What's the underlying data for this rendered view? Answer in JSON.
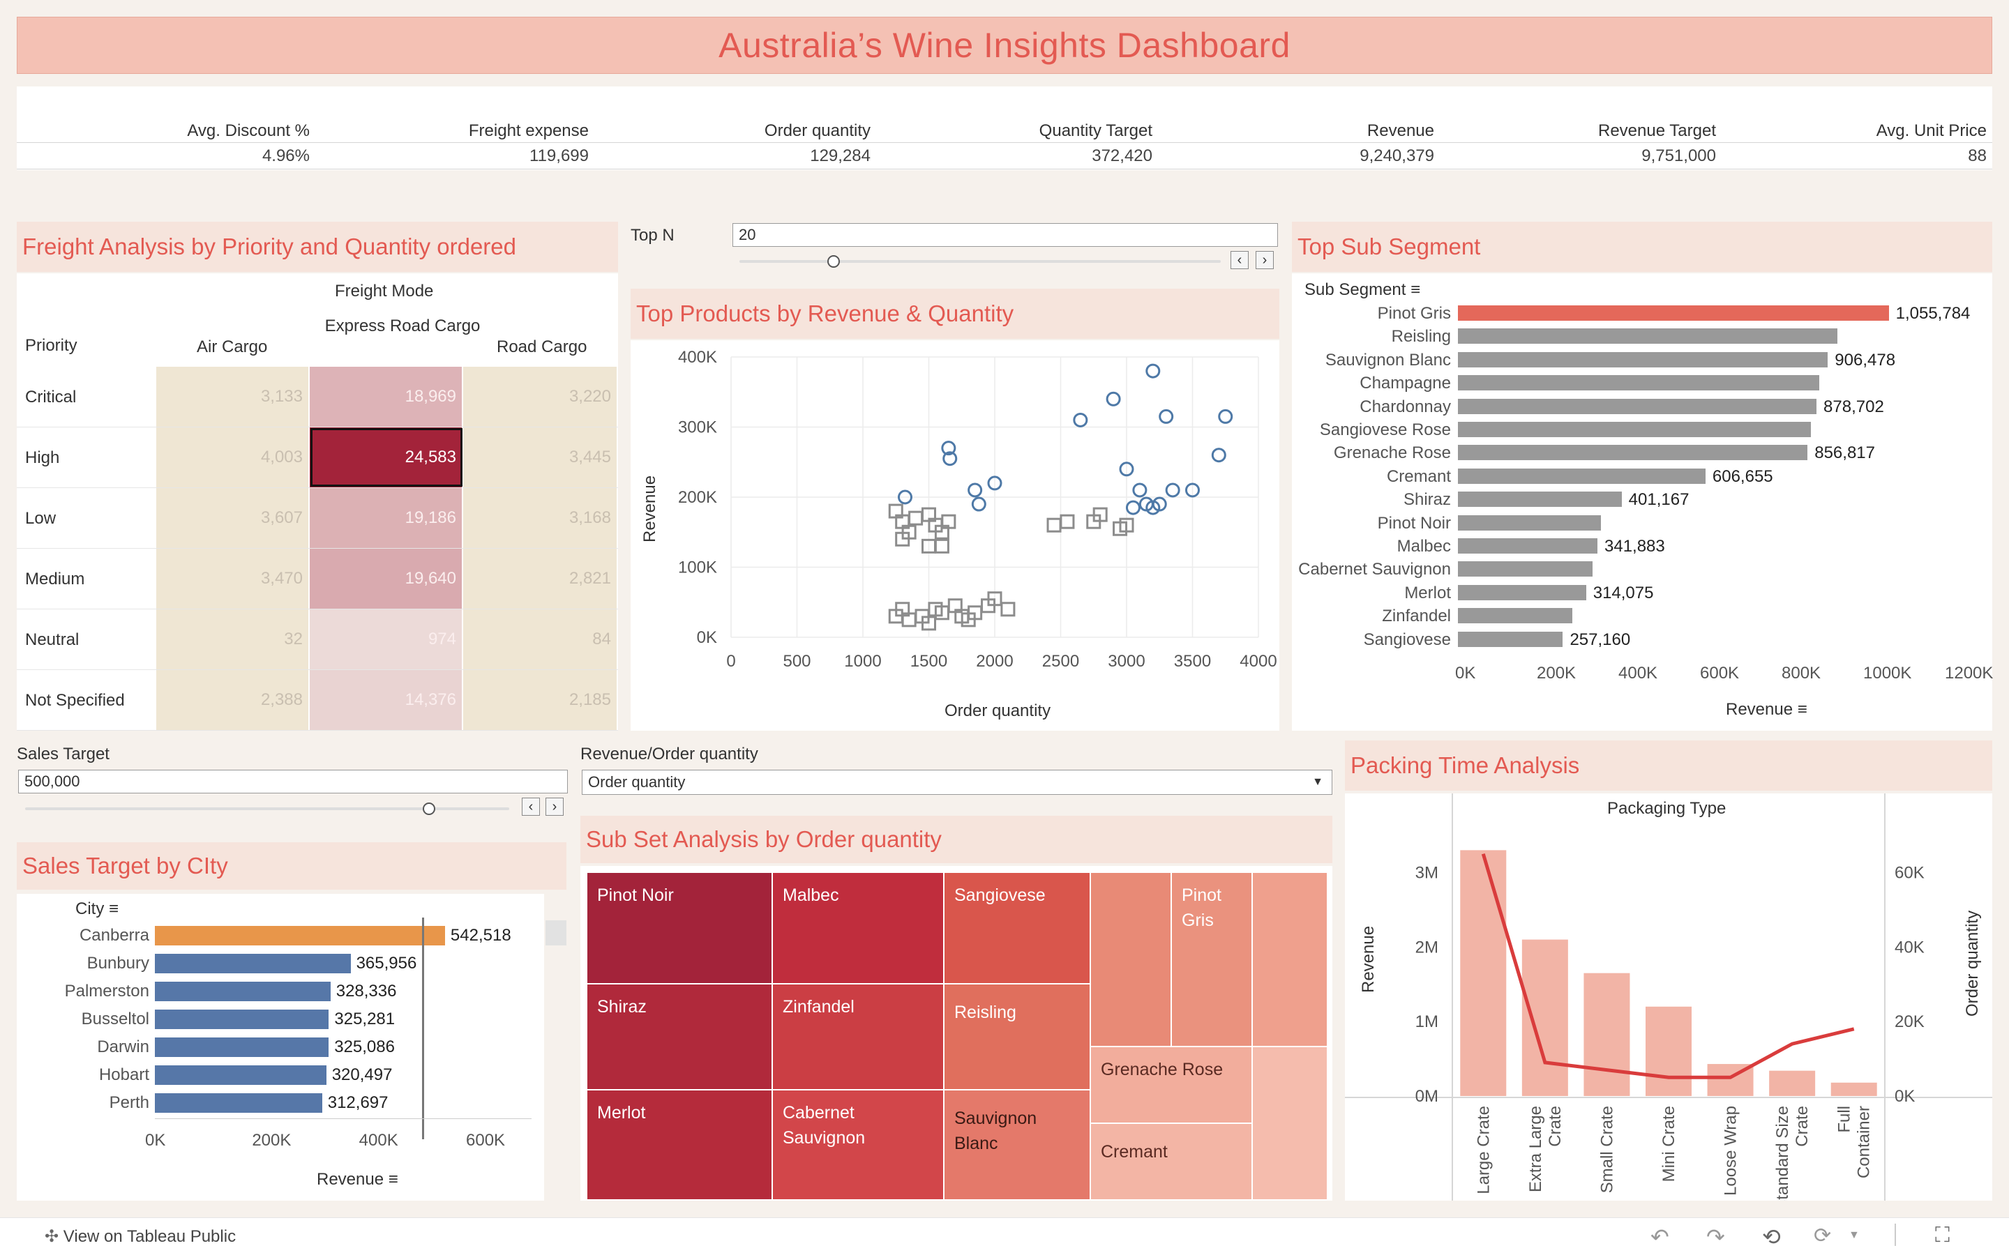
{
  "title": "Australia’s Wine Insights Dashboard",
  "kpis": [
    {
      "label": "Avg. Discount %",
      "value": "4.96%"
    },
    {
      "label": "Freight expense",
      "value": "119,699"
    },
    {
      "label": "Order quantity",
      "value": "129,284"
    },
    {
      "label": "Quantity Target",
      "value": "372,420"
    },
    {
      "label": "Revenue",
      "value": "9,240,379"
    },
    {
      "label": "Revenue Target",
      "value": "9,751,000"
    },
    {
      "label": "Avg. Unit Price",
      "value": "88"
    }
  ],
  "freight": {
    "title": "Freight Analysis by Priority and  Quantity ordered",
    "mode_header": "Freight Mode",
    "row_header": "Priority",
    "columns": [
      "Air Cargo",
      "Express Road Cargo",
      "Road Cargo"
    ],
    "rows": [
      {
        "priority": "Critical",
        "values": [
          "3,133",
          "18,969",
          "3,220"
        ]
      },
      {
        "priority": "High",
        "values": [
          "4,003",
          "24,583",
          "3,445"
        ]
      },
      {
        "priority": "Low",
        "values": [
          "3,607",
          "19,186",
          "3,168"
        ]
      },
      {
        "priority": "Medium",
        "values": [
          "3,470",
          "19,640",
          "2,821"
        ]
      },
      {
        "priority": "Neutral",
        "values": [
          "32",
          "974",
          "84"
        ]
      },
      {
        "priority": "Not Specified",
        "values": [
          "2,388",
          "14,376",
          "2,185"
        ]
      }
    ]
  },
  "topn": {
    "label": "Top N",
    "value": "20",
    "slider_fraction": 0.2
  },
  "scatter": {
    "title": "Top Products by Revenue & Quantity",
    "xlabel": "Order quantity",
    "ylabel": "Revenue",
    "xticks": [
      "0",
      "500",
      "1000",
      "1500",
      "2000",
      "2500",
      "3000",
      "3500",
      "4000"
    ],
    "yticks": [
      "0K",
      "100K",
      "200K",
      "300K",
      "400K"
    ]
  },
  "subsegment": {
    "title": "Top Sub Segment",
    "header": "Sub Segment",
    "axis_label": "Revenue",
    "xticks": [
      "0K",
      "200K",
      "400K",
      "600K",
      "800K",
      "1000K",
      "1200K"
    ]
  },
  "sales_target": {
    "label": "Sales Target",
    "value": "500,000",
    "slider_fraction": 0.8
  },
  "rev_qty": {
    "label": "Revenue/Order quantity",
    "value": "Order quantity"
  },
  "city": {
    "title": "Sales Target by CIty",
    "header": "City",
    "axis_label": "Revenue",
    "xticks": [
      "0K",
      "200K",
      "400K",
      "600K"
    ]
  },
  "subset": {
    "title": "Sub Set Analysis by Order quantity"
  },
  "packing": {
    "title": "Packing Time Analysis",
    "header": "Packaging Type",
    "left_label": "Revenue",
    "right_label": "Order quantity",
    "left_ticks": [
      "3M",
      "2M",
      "1M",
      "0M"
    ],
    "right_ticks": [
      "60K",
      "40K",
      "20K",
      "0K"
    ]
  },
  "footer": {
    "view_label": "View on Tableau Public"
  },
  "chart_data": [
    {
      "type": "heatmap",
      "title": "Freight Analysis by Priority and  Quantity ordered",
      "x": [
        "Air Cargo",
        "Express Road Cargo",
        "Road Cargo"
      ],
      "y": [
        "Critical",
        "High",
        "Low",
        "Medium",
        "Neutral",
        "Not Specified"
      ],
      "values": [
        [
          3133,
          18969,
          3220
        ],
        [
          4003,
          24583,
          3445
        ],
        [
          3607,
          19186,
          3168
        ],
        [
          3470,
          19640,
          2821
        ],
        [
          32,
          974,
          84
        ],
        [
          2388,
          14376,
          2185
        ]
      ]
    },
    {
      "type": "scatter",
      "title": "Top Products by Revenue & Quantity",
      "xlabel": "Order quantity",
      "ylabel": "Revenue",
      "xlim": [
        0,
        4000
      ],
      "ylim": [
        0,
        400000
      ],
      "series": [
        {
          "marker": "circle",
          "color": "#4e79a7",
          "points": [
            [
              1320,
              200000
            ],
            [
              1650,
              270000
            ],
            [
              1660,
              255000
            ],
            [
              1850,
              210000
            ],
            [
              1880,
              190000
            ],
            [
              2000,
              220000
            ],
            [
              2650,
              310000
            ],
            [
              2900,
              340000
            ],
            [
              3200,
              380000
            ],
            [
              3300,
              315000
            ],
            [
              3700,
              260000
            ],
            [
              3750,
              315000
            ],
            [
              3000,
              240000
            ],
            [
              3050,
              185000
            ],
            [
              3100,
              210000
            ],
            [
              3150,
              190000
            ],
            [
              3200,
              185000
            ],
            [
              3250,
              190000
            ],
            [
              3350,
              210000
            ],
            [
              3500,
              210000
            ]
          ]
        },
        {
          "marker": "square",
          "color": "#8c8c8c",
          "points": [
            [
              1250,
              180000
            ],
            [
              1300,
              165000
            ],
            [
              1350,
              150000
            ],
            [
              1400,
              170000
            ],
            [
              1500,
              175000
            ],
            [
              1550,
              160000
            ],
            [
              1600,
              150000
            ],
            [
              1650,
              165000
            ],
            [
              1300,
              140000
            ],
            [
              1500,
              130000
            ],
            [
              1600,
              130000
            ],
            [
              1250,
              30000
            ],
            [
              1300,
              40000
            ],
            [
              1350,
              25000
            ],
            [
              1450,
              30000
            ],
            [
              1500,
              20000
            ],
            [
              1550,
              40000
            ],
            [
              1600,
              35000
            ],
            [
              1700,
              45000
            ],
            [
              1750,
              30000
            ],
            [
              1800,
              25000
            ],
            [
              1850,
              35000
            ],
            [
              1950,
              45000
            ],
            [
              2000,
              55000
            ],
            [
              2100,
              40000
            ],
            [
              2450,
              160000
            ],
            [
              2550,
              165000
            ],
            [
              2750,
              165000
            ],
            [
              2800,
              175000
            ],
            [
              2950,
              155000
            ],
            [
              3000,
              160000
            ]
          ]
        }
      ]
    },
    {
      "type": "bar",
      "title": "Top Sub Segment",
      "xlabel": "Revenue",
      "xlim": [
        0,
        1200000
      ],
      "categories": [
        "Pinot Gris",
        "Reisling",
        "Sauvignon Blanc",
        "Champagne",
        "Chardonnay",
        "Sangiovese Rose",
        "Grenache Rose",
        "Cremant",
        "Shiraz",
        "Pinot Noir",
        "Malbec",
        "Cabernet Sauvignon",
        "Merlot",
        "Zinfandel",
        "Sangiovese"
      ],
      "values": [
        1055784,
        930000,
        906478,
        885000,
        878702,
        865000,
        856817,
        606655,
        401167,
        350000,
        341883,
        330000,
        314075,
        280000,
        257160
      ],
      "labels": [
        "1,055,784",
        "",
        "906,478",
        "",
        "878,702",
        "",
        "856,817",
        "606,655",
        "401,167",
        "",
        "341,883",
        "",
        "314,075",
        "",
        "257,160"
      ],
      "highlight": "Pinot Gris"
    },
    {
      "type": "bar",
      "title": "Sales Target by CIty",
      "xlabel": "Revenue",
      "xlim": [
        0,
        700000
      ],
      "categories": [
        "Canberra",
        "Bunbury",
        "Palmerston",
        "Busseltol",
        "Darwin",
        "Hobart",
        "Perth"
      ],
      "values": [
        542518,
        365956,
        328336,
        325281,
        325086,
        320497,
        312697
      ],
      "labels": [
        "542,518",
        "365,956",
        "328,336",
        "325,281",
        "325,086",
        "320,497",
        "312,697"
      ],
      "reference_line": 500000,
      "highlight": "Canberra"
    },
    {
      "type": "table",
      "title": "Sub Set Analysis by Order quantity",
      "categories": [
        "Pinot Noir",
        "Malbec",
        "Sangiovese",
        "Pinot Gris",
        "Shiraz",
        "Zinfandel",
        "Reisling",
        "Grenache Rose",
        "Merlot",
        "Cabernet Sauvignon",
        "Sauvignon Blanc",
        "Cremant"
      ]
    },
    {
      "type": "bar",
      "title": "Packing Time Analysis",
      "categories": [
        "Large Crate",
        "Extra Large Crate",
        "Small Crate",
        "Mini Crate",
        "Loose Wrap",
        "Standard Size Crate",
        "Full Container"
      ],
      "series": [
        {
          "name": "Revenue",
          "type": "bar",
          "values": [
            3300000,
            2100000,
            1650000,
            1200000,
            430000,
            340000,
            180000
          ]
        },
        {
          "name": "Order quantity",
          "type": "line",
          "values": [
            65000,
            9000,
            7000,
            5000,
            5000,
            14000,
            18000
          ]
        }
      ],
      "ylim_left": [
        0,
        3500000
      ],
      "ylim_right": [
        0,
        70000
      ]
    }
  ]
}
